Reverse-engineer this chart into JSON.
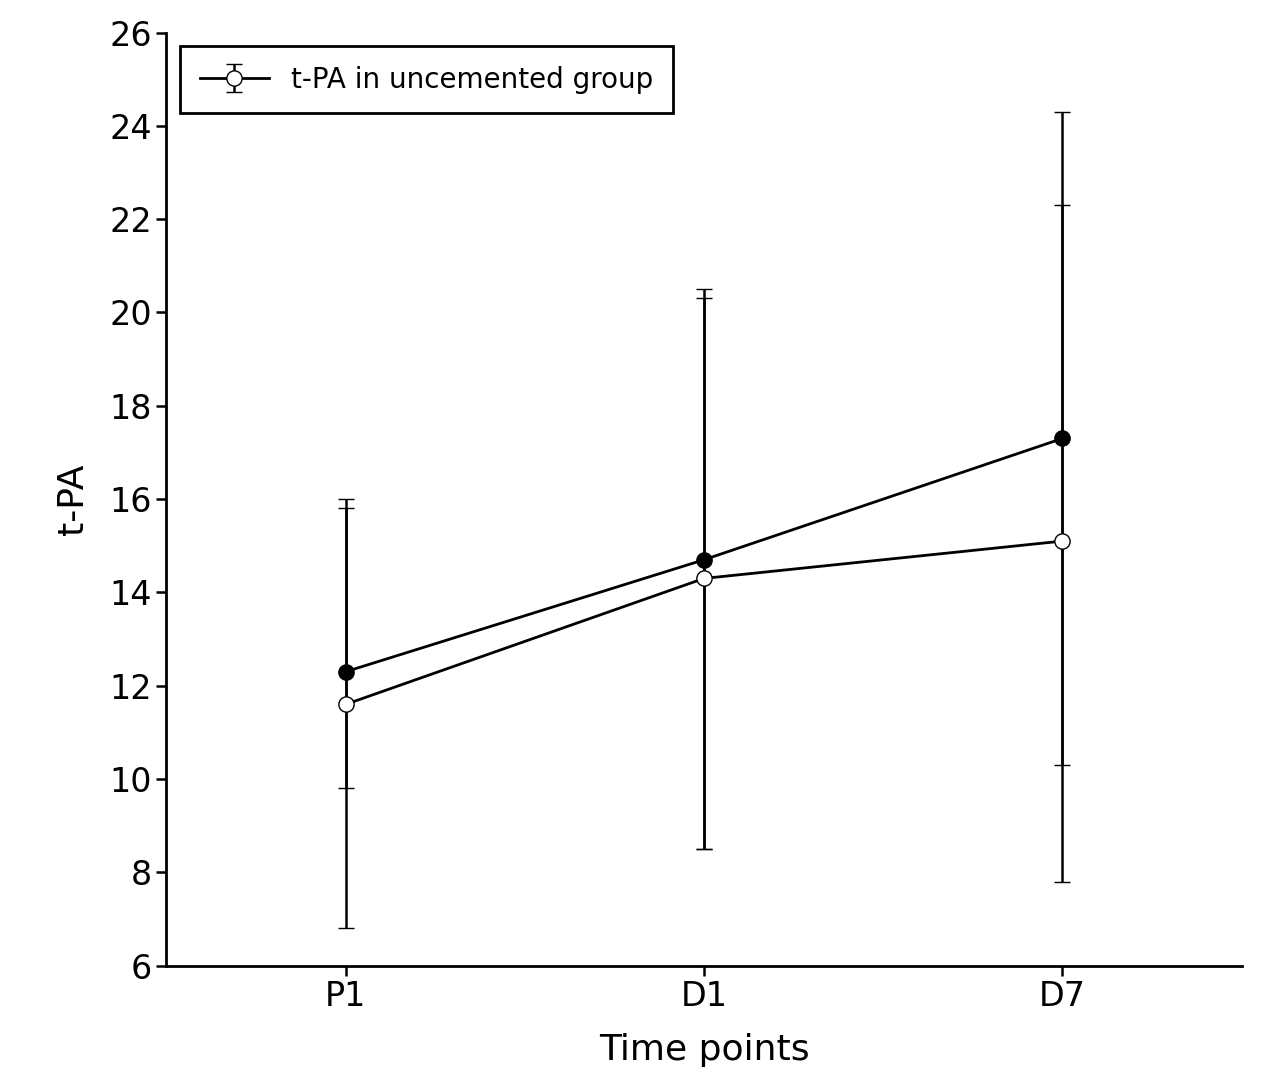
{
  "time_points": [
    "P1",
    "D1",
    "D7"
  ],
  "cemented_mean": [
    12.3,
    14.7,
    17.3
  ],
  "cemented_err_up": [
    3.7,
    5.8,
    7.0
  ],
  "cemented_err_down": [
    2.5,
    6.2,
    9.5
  ],
  "uncemented_mean": [
    11.6,
    14.3,
    15.1
  ],
  "uncemented_err_up": [
    4.2,
    6.0,
    7.2
  ],
  "uncemented_err_down": [
    4.8,
    5.8,
    4.8
  ],
  "ylabel": "t-PA",
  "xlabel": "Time points",
  "ylim": [
    6,
    26
  ],
  "yticks": [
    6,
    8,
    10,
    12,
    14,
    16,
    18,
    20,
    22,
    24,
    26
  ],
  "legend_label_uncemented": "t-PA in uncemented group",
  "bg_color": "#ffffff",
  "line_color": "#000000",
  "marker_size_filled": 11,
  "marker_size_open": 11,
  "linewidth": 2.0,
  "capsize": 6,
  "elinewidth": 1.8
}
